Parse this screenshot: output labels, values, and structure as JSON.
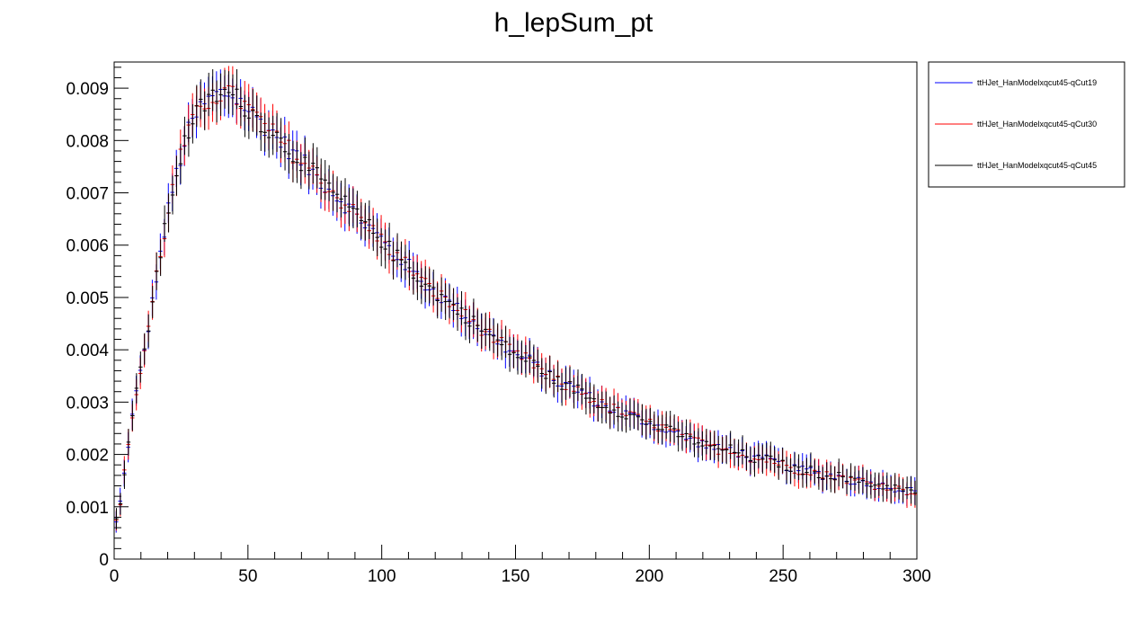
{
  "chart_data": {
    "type": "scatter",
    "title": "h_lepSum_pt",
    "xlabel": "",
    "ylabel": "",
    "xlim": [
      0,
      300
    ],
    "ylim": [
      0,
      0.0095
    ],
    "x_ticks": [
      "0",
      "50",
      "100",
      "150",
      "200",
      "250",
      "300"
    ],
    "y_ticks": [
      "0",
      "0.001",
      "0.002",
      "0.003",
      "0.004",
      "0.005",
      "0.006",
      "0.007",
      "0.008",
      "0.009"
    ],
    "grid": false,
    "legend_position": "top-right",
    "bin_width": 1.5,
    "series": [
      {
        "name": "ttHJet_HanModelxqcut45-qCut19",
        "color": "#0000ff"
      },
      {
        "name": "ttHJet_HanModelxqcut45-qCut30",
        "color": "#ff0000"
      },
      {
        "name": "ttHJet_HanModelxqcut45-qCut45",
        "color": "#000000"
      }
    ],
    "profile": {
      "x": [
        0,
        2,
        4,
        6,
        8,
        10,
        12,
        14,
        16,
        18,
        20,
        22,
        24,
        26,
        28,
        30,
        32,
        34,
        36,
        38,
        40,
        42,
        44,
        46,
        48,
        50,
        52,
        54,
        56,
        58,
        60,
        62,
        64,
        66,
        68,
        70,
        72,
        74,
        76,
        78,
        80,
        82,
        84,
        86,
        88,
        90,
        92,
        94,
        96,
        98,
        100,
        105,
        110,
        115,
        120,
        125,
        130,
        135,
        140,
        145,
        150,
        155,
        160,
        165,
        170,
        175,
        180,
        185,
        190,
        195,
        200,
        205,
        210,
        215,
        220,
        225,
        230,
        235,
        240,
        245,
        250,
        255,
        260,
        265,
        270,
        275,
        280,
        285,
        290,
        295,
        300
      ],
      "y": [
        0.0005,
        0.001,
        0.0017,
        0.0025,
        0.0031,
        0.0036,
        0.0042,
        0.0048,
        0.0055,
        0.006,
        0.0066,
        0.0071,
        0.0075,
        0.0079,
        0.0082,
        0.0084,
        0.0086,
        0.0087,
        0.0088,
        0.00885,
        0.0089,
        0.0089,
        0.00885,
        0.0088,
        0.0087,
        0.0086,
        0.0085,
        0.0084,
        0.0083,
        0.0082,
        0.0081,
        0.008,
        0.0079,
        0.0078,
        0.0077,
        0.0076,
        0.0075,
        0.0074,
        0.0073,
        0.0072,
        0.0071,
        0.007,
        0.0069,
        0.0068,
        0.0067,
        0.0066,
        0.0065,
        0.0064,
        0.0063,
        0.0062,
        0.0061,
        0.0058,
        0.0056,
        0.0053,
        0.0051,
        0.0049,
        0.0047,
        0.0045,
        0.0043,
        0.0041,
        0.0039,
        0.0038,
        0.0036,
        0.0034,
        0.0033,
        0.0032,
        0.003,
        0.0029,
        0.0028,
        0.0027,
        0.0026,
        0.0025,
        0.0024,
        0.0023,
        0.0022,
        0.0021,
        0.0021,
        0.002,
        0.0019,
        0.0019,
        0.0018,
        0.0017,
        0.0017,
        0.0016,
        0.0016,
        0.0015,
        0.0015,
        0.0014,
        0.0014,
        0.0013,
        0.0013
      ]
    },
    "noise_amplitude": 0.0003
  }
}
